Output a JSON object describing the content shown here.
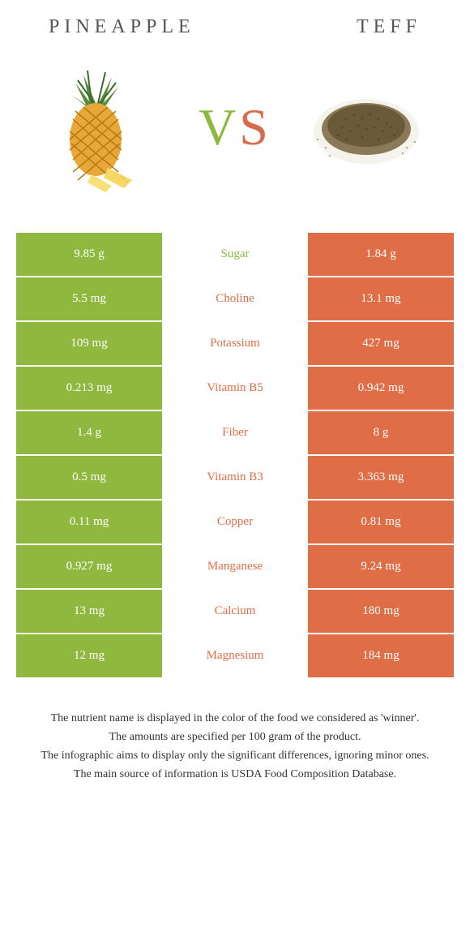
{
  "foods": {
    "left": {
      "name": "PINEAPPLE",
      "color": "#8fb83f"
    },
    "right": {
      "name": "Teff",
      "color": "#df6e46"
    }
  },
  "vs": {
    "v": "V",
    "s": "S",
    "v_color": "#8fb83f",
    "s_color": "#d96c48"
  },
  "colors": {
    "green": "#8fb83f",
    "orange": "#df6e46",
    "background": "#ffffff",
    "title": "#555555",
    "footer": "#333333"
  },
  "rows": [
    {
      "nutrient": "Sugar",
      "left": "9.85 g",
      "right": "1.84 g",
      "winner": "green"
    },
    {
      "nutrient": "Choline",
      "left": "5.5 mg",
      "right": "13.1 mg",
      "winner": "orange"
    },
    {
      "nutrient": "Potassium",
      "left": "109 mg",
      "right": "427 mg",
      "winner": "orange"
    },
    {
      "nutrient": "Vitamin B5",
      "left": "0.213 mg",
      "right": "0.942 mg",
      "winner": "orange"
    },
    {
      "nutrient": "Fiber",
      "left": "1.4 g",
      "right": "8 g",
      "winner": "orange"
    },
    {
      "nutrient": "Vitamin B3",
      "left": "0.5 mg",
      "right": "3.363 mg",
      "winner": "orange"
    },
    {
      "nutrient": "Copper",
      "left": "0.11 mg",
      "right": "0.81 mg",
      "winner": "orange"
    },
    {
      "nutrient": "Manganese",
      "left": "0.927 mg",
      "right": "9.24 mg",
      "winner": "orange"
    },
    {
      "nutrient": "Calcium",
      "left": "13 mg",
      "right": "180 mg",
      "winner": "orange"
    },
    {
      "nutrient": "Magnesium",
      "left": "12 mg",
      "right": "184 mg",
      "winner": "orange"
    }
  ],
  "footer": [
    "The nutrient name is displayed in the color of the food we considered as 'winner'.",
    "The amounts are specified per 100 gram of the product.",
    "The infographic aims to display only the significant differences, ignoring minor ones.",
    "The main source of information is USDA Food Composition Database."
  ]
}
